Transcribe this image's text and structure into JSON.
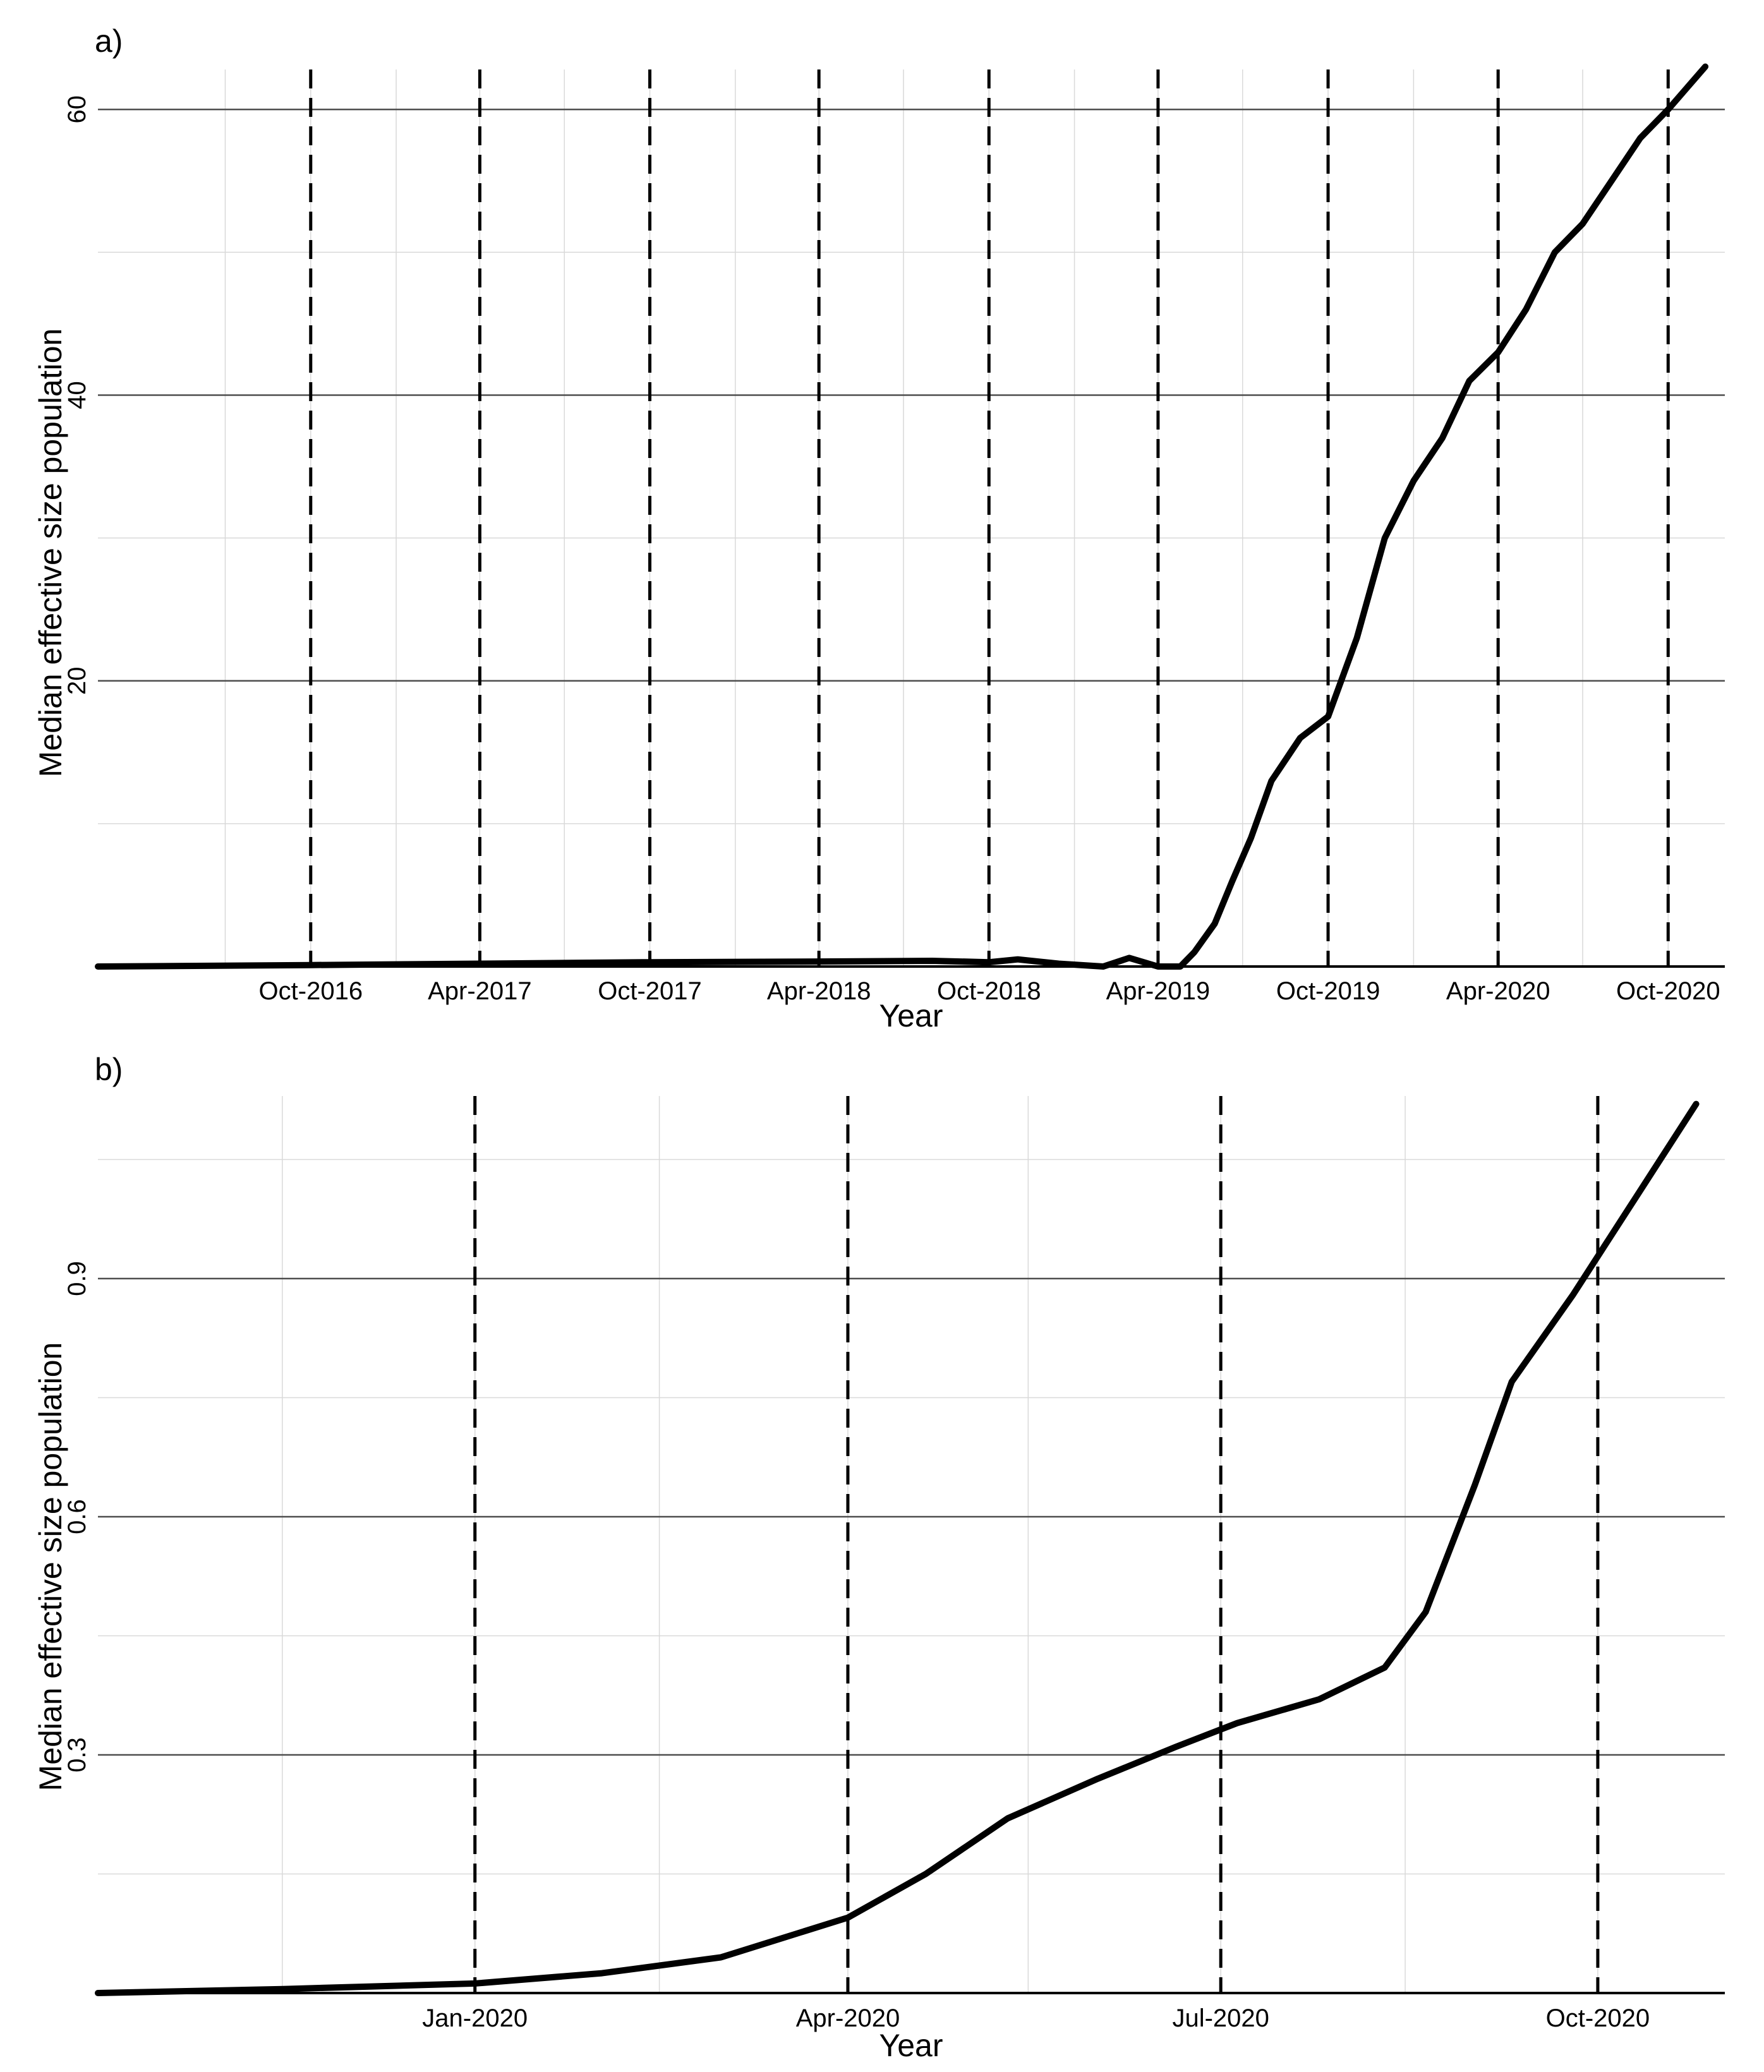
{
  "chart_data": [
    {
      "type": "line",
      "panel_label": "a)",
      "title": "",
      "xlabel": "Year",
      "ylabel": "Median effective size population",
      "ylim": [
        0,
        62.8
      ],
      "xlim": [
        "2016-02-15",
        "2020-12-01"
      ],
      "y_ticks": [
        20,
        40,
        60
      ],
      "y_tick_labels": [
        "20",
        "40",
        "60"
      ],
      "y_minor_ticks": [
        10,
        30,
        50
      ],
      "x_ticks": [
        "2016-10-01",
        "2017-04-01",
        "2017-10-01",
        "2018-04-01",
        "2018-10-01",
        "2019-04-01",
        "2019-10-01",
        "2020-04-01",
        "2020-10-01"
      ],
      "x_tick_labels": [
        "Oct-2016",
        "Apr-2017",
        "Oct-2017",
        "Apr-2018",
        "Oct-2018",
        "Apr-2019",
        "Oct-2019",
        "Apr-2020",
        "Oct-2020"
      ],
      "x_minor_ticks": [
        "2016-07-01",
        "2017-01-01",
        "2017-07-01",
        "2018-01-01",
        "2018-07-01",
        "2019-01-01",
        "2019-07-01",
        "2020-01-01",
        "2020-07-01"
      ],
      "reference_lines": [
        "2016-10-01",
        "2017-04-01",
        "2017-10-01",
        "2018-04-01",
        "2018-10-01",
        "2019-04-01",
        "2019-10-01",
        "2020-04-01",
        "2020-10-01"
      ],
      "grid": true,
      "legend": "none",
      "series": [
        {
          "x": [
            "2016-02-15",
            "2016-10-01",
            "2017-04-01",
            "2017-10-01",
            "2018-04-01",
            "2018-08-01",
            "2018-10-01",
            "2018-11-01",
            "2018-12-15",
            "2019-02-01",
            "2019-03-01",
            "2019-04-01",
            "2019-04-25",
            "2019-05-10",
            "2019-06-01",
            "2019-06-20",
            "2019-07-10",
            "2019-08-01",
            "2019-09-01",
            "2019-10-01",
            "2019-11-01",
            "2019-12-01",
            "2020-01-01",
            "2020-02-01",
            "2020-03-01",
            "2020-04-01",
            "2020-05-01",
            "2020-06-01",
            "2020-07-01",
            "2020-08-01",
            "2020-09-01",
            "2020-10-01",
            "2020-11-10"
          ],
          "y": [
            0,
            0.1,
            0.2,
            0.3,
            0.35,
            0.4,
            0.3,
            0.5,
            0.2,
            0,
            0.6,
            0,
            0,
            1,
            3,
            6,
            9,
            13,
            16,
            17.5,
            23,
            30,
            34,
            37,
            41,
            43,
            46,
            50,
            52,
            55,
            58,
            60,
            63
          ]
        }
      ]
    },
    {
      "type": "line",
      "panel_label": "b)",
      "title": "",
      "xlabel": "Year",
      "ylabel": "Median effective size population",
      "ylim": [
        0,
        1.13
      ],
      "xlim": [
        "2019-10-01",
        "2020-11-01"
      ],
      "y_ticks": [
        0.3,
        0.6,
        0.9
      ],
      "y_tick_labels": [
        "0.3",
        "0.6",
        "0.9"
      ],
      "y_minor_ticks": [
        0.15,
        0.45,
        0.75,
        1.05
      ],
      "x_ticks": [
        "2020-01-01",
        "2020-04-01",
        "2020-07-01",
        "2020-10-01"
      ],
      "x_tick_labels": [
        "Jan-2020",
        "Apr-2020",
        "Jul-2020",
        "Oct-2020"
      ],
      "x_minor_ticks": [
        "2019-11-15",
        "2020-02-15",
        "2020-05-15",
        "2020-08-15"
      ],
      "reference_lines": [
        "2020-01-01",
        "2020-04-01",
        "2020-07-01",
        "2020-10-01"
      ],
      "grid": true,
      "legend": "none",
      "series": [
        {
          "x": [
            "2019-10-01",
            "2019-11-15",
            "2020-01-01",
            "2020-02-01",
            "2020-03-01",
            "2020-04-01",
            "2020-04-20",
            "2020-05-10",
            "2020-06-01",
            "2020-06-20",
            "2020-07-05",
            "2020-07-25",
            "2020-08-10",
            "2020-08-20",
            "2020-09-01",
            "2020-09-10",
            "2020-09-25",
            "2020-10-10",
            "2020-10-25"
          ],
          "y": [
            0,
            0.005,
            0.012,
            0.025,
            0.045,
            0.095,
            0.15,
            0.22,
            0.27,
            0.31,
            0.34,
            0.37,
            0.41,
            0.48,
            0.64,
            0.77,
            0.88,
            1.0,
            1.12
          ]
        }
      ]
    }
  ]
}
